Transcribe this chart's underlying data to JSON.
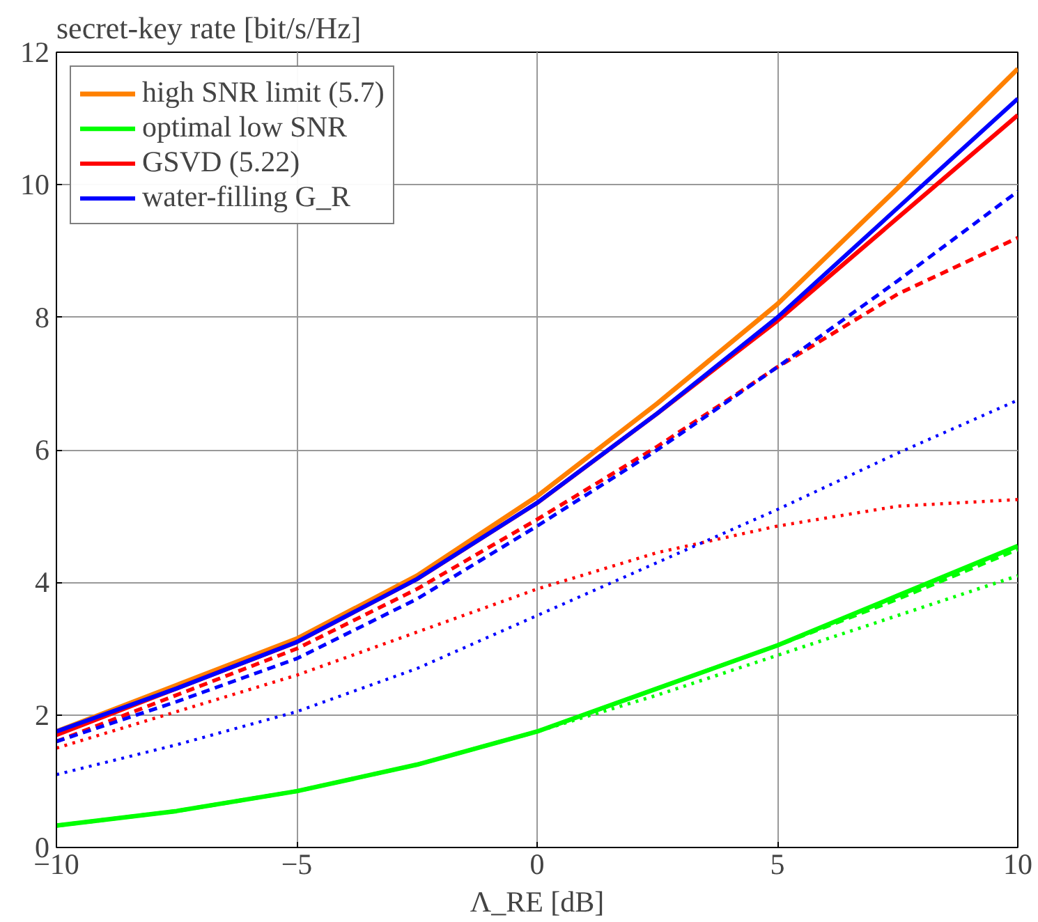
{
  "chart_data": {
    "type": "line",
    "ylabel": "secret-key rate [bit/s/Hz]",
    "xlabel": "Λ_RE [dB]",
    "x": [
      -10,
      -7.5,
      -5,
      -2.5,
      0,
      2.5,
      5,
      7.5,
      10
    ],
    "xlim": [
      -10,
      10
    ],
    "xticks": [
      -10,
      -5,
      0,
      5,
      10
    ],
    "ylim": [
      0,
      12
    ],
    "yticks": [
      0,
      2,
      4,
      6,
      8,
      10,
      12
    ],
    "grid": true,
    "legend": "top left",
    "series": [
      {
        "name": "high SNR limit (5.7)",
        "color": "#ff8000",
        "line_style": "solid",
        "values": [
          1.75,
          2.45,
          3.15,
          4.1,
          5.3,
          6.7,
          8.2,
          9.95,
          11.75
        ]
      },
      {
        "name": "optimal low SNR",
        "color": "#00ff00",
        "line_style": "solid",
        "values": [
          0.33,
          0.55,
          0.85,
          1.25,
          1.75,
          2.4,
          3.05,
          3.8,
          4.55
        ]
      },
      {
        "name": "GSVD (5.22)",
        "color": "#ff0000",
        "line_style": "solid",
        "values": [
          1.7,
          2.4,
          3.1,
          4.05,
          5.2,
          6.55,
          7.95,
          9.5,
          11.05
        ]
      },
      {
        "name": "water-filling G_R",
        "color": "#0000ff",
        "line_style": "solid",
        "values": [
          1.75,
          2.4,
          3.1,
          4.05,
          5.2,
          6.55,
          8.0,
          9.65,
          11.3
        ]
      },
      {
        "color": "#00ff00",
        "line_style": "dashed",
        "values": [
          0.33,
          0.55,
          0.85,
          1.25,
          1.75,
          2.4,
          3.05,
          3.75,
          4.5
        ]
      },
      {
        "color": "#ff0000",
        "line_style": "dashed",
        "values": [
          1.6,
          2.3,
          3.0,
          3.9,
          4.95,
          6.05,
          7.25,
          8.35,
          9.2
        ]
      },
      {
        "color": "#0000ff",
        "line_style": "dashed",
        "values": [
          1.6,
          2.2,
          2.85,
          3.75,
          4.85,
          6.0,
          7.25,
          8.55,
          9.9
        ]
      },
      {
        "color": "#00ff00",
        "line_style": "dotted",
        "values": [
          0.33,
          0.55,
          0.85,
          1.25,
          1.75,
          2.3,
          2.9,
          3.5,
          4.1
        ]
      },
      {
        "color": "#ff0000",
        "line_style": "dotted",
        "values": [
          1.5,
          2.05,
          2.6,
          3.25,
          3.9,
          4.45,
          4.85,
          5.15,
          5.25
        ]
      },
      {
        "color": "#0000ff",
        "line_style": "dotted",
        "values": [
          1.1,
          1.55,
          2.05,
          2.7,
          3.5,
          4.3,
          5.1,
          5.95,
          6.75
        ]
      }
    ]
  }
}
